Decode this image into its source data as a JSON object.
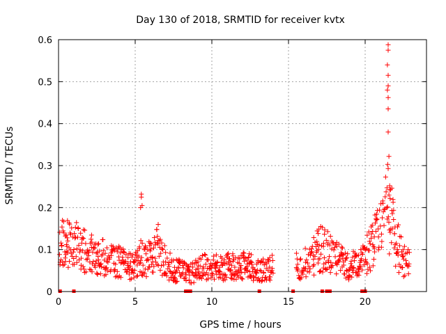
{
  "chart_data": {
    "type": "scatter",
    "title": "Day 130 of 2018, SRMTID for receiver kvtx",
    "xlabel": "GPS time / hours",
    "ylabel": "SRMTID / TECUs",
    "xlim": [
      0,
      24
    ],
    "ylim": [
      0,
      0.6
    ],
    "xticks": [
      "0",
      "5",
      "10",
      "15",
      "20"
    ],
    "yticks": [
      "0",
      "0.1",
      "0.2",
      "0.3",
      "0.4",
      "0.5",
      "0.6"
    ],
    "grid": true,
    "marker": "+",
    "colors": {
      "points": "#ff0000",
      "grid": "#a0a0a0",
      "axes": "#000000"
    },
    "baseline_markers_x": [
      0.1,
      1.0,
      8.3,
      8.4,
      8.5,
      8.6,
      13.1,
      15.3,
      17.2,
      17.5,
      17.7,
      19.8,
      19.9,
      20.0
    ],
    "envelope": [
      {
        "x": 0.0,
        "y": 0.1
      },
      {
        "x": 0.5,
        "y": 0.12
      },
      {
        "x": 1.0,
        "y": 0.11
      },
      {
        "x": 1.5,
        "y": 0.1
      },
      {
        "x": 2.0,
        "y": 0.09
      },
      {
        "x": 2.5,
        "y": 0.08
      },
      {
        "x": 3.0,
        "y": 0.08
      },
      {
        "x": 3.5,
        "y": 0.07
      },
      {
        "x": 4.0,
        "y": 0.07
      },
      {
        "x": 4.5,
        "y": 0.06
      },
      {
        "x": 5.0,
        "y": 0.06
      },
      {
        "x": 5.3,
        "y": 0.09
      },
      {
        "x": 5.6,
        "y": 0.07
      },
      {
        "x": 6.0,
        "y": 0.08
      },
      {
        "x": 6.5,
        "y": 0.1
      },
      {
        "x": 7.0,
        "y": 0.07
      },
      {
        "x": 7.5,
        "y": 0.05
      },
      {
        "x": 8.0,
        "y": 0.05
      },
      {
        "x": 8.5,
        "y": 0.04
      },
      {
        "x": 9.0,
        "y": 0.05
      },
      {
        "x": 9.5,
        "y": 0.06
      },
      {
        "x": 10.0,
        "y": 0.06
      },
      {
        "x": 10.5,
        "y": 0.055
      },
      {
        "x": 11.0,
        "y": 0.06
      },
      {
        "x": 11.5,
        "y": 0.06
      },
      {
        "x": 12.0,
        "y": 0.06
      },
      {
        "x": 12.5,
        "y": 0.06
      },
      {
        "x": 13.0,
        "y": 0.05
      },
      {
        "x": 13.5,
        "y": 0.05
      },
      {
        "x": 14.0,
        "y": 0.06
      },
      {
        "x": 15.5,
        "y": 0.06
      },
      {
        "x": 16.0,
        "y": 0.07
      },
      {
        "x": 16.5,
        "y": 0.08
      },
      {
        "x": 17.0,
        "y": 0.1
      },
      {
        "x": 17.5,
        "y": 0.1
      },
      {
        "x": 18.0,
        "y": 0.08
      },
      {
        "x": 18.5,
        "y": 0.07
      },
      {
        "x": 19.0,
        "y": 0.06
      },
      {
        "x": 19.5,
        "y": 0.07
      },
      {
        "x": 20.0,
        "y": 0.08
      },
      {
        "x": 20.5,
        "y": 0.12
      },
      {
        "x": 21.0,
        "y": 0.14
      },
      {
        "x": 21.5,
        "y": 0.2
      },
      {
        "x": 22.0,
        "y": 0.12
      },
      {
        "x": 22.5,
        "y": 0.07
      },
      {
        "x": 22.9,
        "y": 0.07
      }
    ],
    "spikes": [
      {
        "x": 5.4,
        "y": 0.232
      },
      {
        "x": 5.4,
        "y": 0.225
      },
      {
        "x": 5.45,
        "y": 0.205
      },
      {
        "x": 5.35,
        "y": 0.2
      },
      {
        "x": 6.5,
        "y": 0.16
      },
      {
        "x": 17.1,
        "y": 0.155
      },
      {
        "x": 21.5,
        "y": 0.588
      },
      {
        "x": 21.5,
        "y": 0.575
      },
      {
        "x": 21.45,
        "y": 0.54
      },
      {
        "x": 21.5,
        "y": 0.515
      },
      {
        "x": 21.5,
        "y": 0.49
      },
      {
        "x": 21.45,
        "y": 0.48
      },
      {
        "x": 21.5,
        "y": 0.462
      },
      {
        "x": 21.5,
        "y": 0.435
      },
      {
        "x": 21.5,
        "y": 0.38
      },
      {
        "x": 21.55,
        "y": 0.322
      },
      {
        "x": 21.5,
        "y": 0.293
      },
      {
        "x": 21.6,
        "y": 0.252
      },
      {
        "x": 21.65,
        "y": 0.243
      },
      {
        "x": 21.55,
        "y": 0.23
      }
    ]
  }
}
